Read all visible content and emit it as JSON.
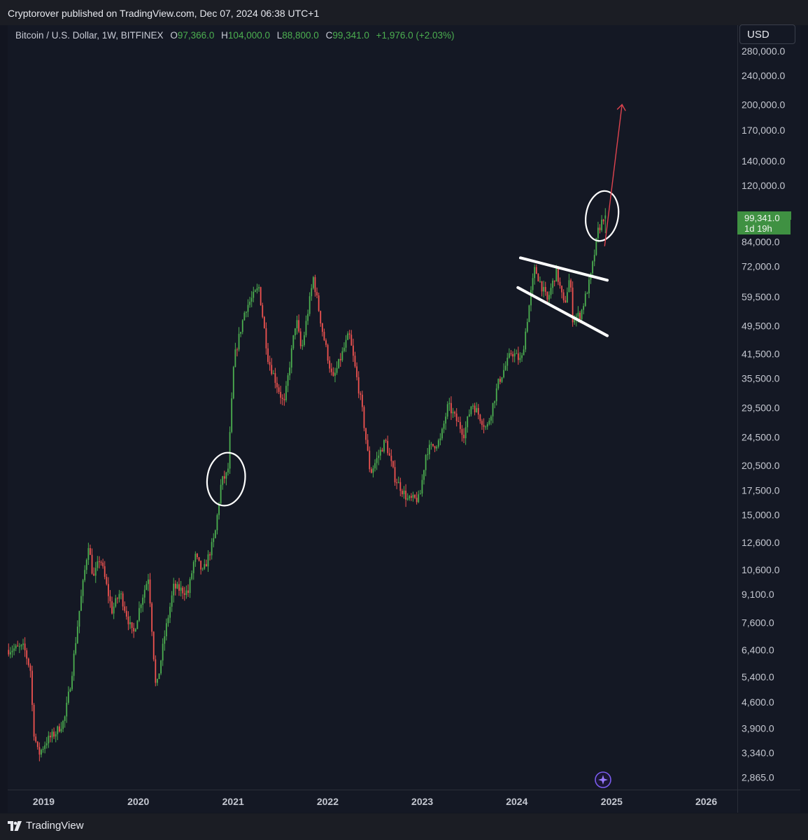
{
  "header": {
    "published_line": "Cryptorover published on TradingView.com, Dec 07, 2024 06:38 UTC+1"
  },
  "legend": {
    "symbol": "Bitcoin / U.S. Dollar, 1W, BITFINEX",
    "o_label": "O",
    "o_value": "97,366.0",
    "h_label": "H",
    "h_value": "104,000.0",
    "l_label": "L",
    "l_value": "88,800.0",
    "c_label": "C",
    "c_value": "99,341.0",
    "change": "+1,976.0 (+2.03%)"
  },
  "currency_button": "USD",
  "price_tag": {
    "price": "99,341.0",
    "countdown": "1d 19h"
  },
  "footer": {
    "brand": "TradingView"
  },
  "colors": {
    "background": "#141824",
    "up": "#4caf50",
    "down": "#ef5350",
    "annotation": "#ffffff",
    "arrow": "#e0444f",
    "price_tag": "#3f9142"
  },
  "chart_data": {
    "type": "candlestick",
    "title": "Bitcoin / U.S. Dollar, 1W, BITFINEX",
    "scale": "log",
    "grid": false,
    "ylim": [
      2650,
      330000
    ],
    "y_ticks": [
      "280,000.0",
      "240,000.0",
      "200,000.0",
      "170,000.0",
      "140,000.0",
      "120,000.0",
      "84,000.0",
      "72,000.0",
      "59,500.0",
      "49,500.0",
      "41,500.0",
      "35,500.0",
      "29,500.0",
      "24,500.0",
      "20,500.0",
      "17,500.0",
      "15,000.0",
      "12,600.0",
      "10,600.0",
      "9,100.0",
      "7,600.0",
      "6,400.0",
      "5,400.0",
      "4,600.0",
      "3,900.0",
      "3,340.0",
      "2,865.0"
    ],
    "x_ticks": [
      "2019",
      "2020",
      "2021",
      "2022",
      "2023",
      "2024",
      "2025",
      "2026"
    ],
    "xlim": [
      "2018-08-15",
      "2026-05-01"
    ],
    "price_path": [
      [
        "2018-08-15",
        6400
      ],
      [
        "2018-10-20",
        6500
      ],
      [
        "2018-11-15",
        5600
      ],
      [
        "2018-11-25",
        3900
      ],
      [
        "2018-12-15",
        3300
      ],
      [
        "2019-01-15",
        3600
      ],
      [
        "2019-02-20",
        3800
      ],
      [
        "2019-03-25",
        4100
      ],
      [
        "2019-04-20",
        5300
      ],
      [
        "2019-05-20",
        8000
      ],
      [
        "2019-06-26",
        12500
      ],
      [
        "2019-07-15",
        10000
      ],
      [
        "2019-08-10",
        11500
      ],
      [
        "2019-09-25",
        8200
      ],
      [
        "2019-10-26",
        9200
      ],
      [
        "2019-12-15",
        7000
      ],
      [
        "2020-01-15",
        8700
      ],
      [
        "2020-02-13",
        10200
      ],
      [
        "2020-03-13",
        4900
      ],
      [
        "2020-04-15",
        7000
      ],
      [
        "2020-05-20",
        9500
      ],
      [
        "2020-07-15",
        9200
      ],
      [
        "2020-08-10",
        11600
      ],
      [
        "2020-09-10",
        10400
      ],
      [
        "2020-10-25",
        13000
      ],
      [
        "2020-11-20",
        18500
      ],
      [
        "2020-12-15",
        19500
      ],
      [
        "2021-01-08",
        40000
      ],
      [
        "2021-02-20",
        55000
      ],
      [
        "2021-04-14",
        63000
      ],
      [
        "2021-05-20",
        40000
      ],
      [
        "2021-07-20",
        30000
      ],
      [
        "2021-09-05",
        52000
      ],
      [
        "2021-09-25",
        42000
      ],
      [
        "2021-11-10",
        67000
      ],
      [
        "2021-12-15",
        48000
      ],
      [
        "2022-01-24",
        35000
      ],
      [
        "2022-03-28",
        47000
      ],
      [
        "2022-05-15",
        30000
      ],
      [
        "2022-06-18",
        19500
      ],
      [
        "2022-08-15",
        24000
      ],
      [
        "2022-09-20",
        19000
      ],
      [
        "2022-11-10",
        16500
      ],
      [
        "2022-12-25",
        16600
      ],
      [
        "2023-01-20",
        22500
      ],
      [
        "2023-03-15",
        24000
      ],
      [
        "2023-04-14",
        30000
      ],
      [
        "2023-06-15",
        25000
      ],
      [
        "2023-07-15",
        30500
      ],
      [
        "2023-09-10",
        25800
      ],
      [
        "2023-10-25",
        34500
      ],
      [
        "2023-12-15",
        42000
      ],
      [
        "2024-01-22",
        39500
      ],
      [
        "2024-02-28",
        61000
      ],
      [
        "2024-03-14",
        71000
      ],
      [
        "2024-05-01",
        58000
      ],
      [
        "2024-06-05",
        70000
      ],
      [
        "2024-07-05",
        56000
      ],
      [
        "2024-07-28",
        68000
      ],
      [
        "2024-08-05",
        52000
      ],
      [
        "2024-09-06",
        53000
      ],
      [
        "2024-10-15",
        67000
      ],
      [
        "2024-11-13",
        90000
      ],
      [
        "2024-12-07",
        99341
      ]
    ],
    "last": {
      "open": 97366.0,
      "high": 104000.0,
      "low": 88800.0,
      "close": 99341.0,
      "change": 1976.0,
      "change_pct": 2.03
    }
  }
}
